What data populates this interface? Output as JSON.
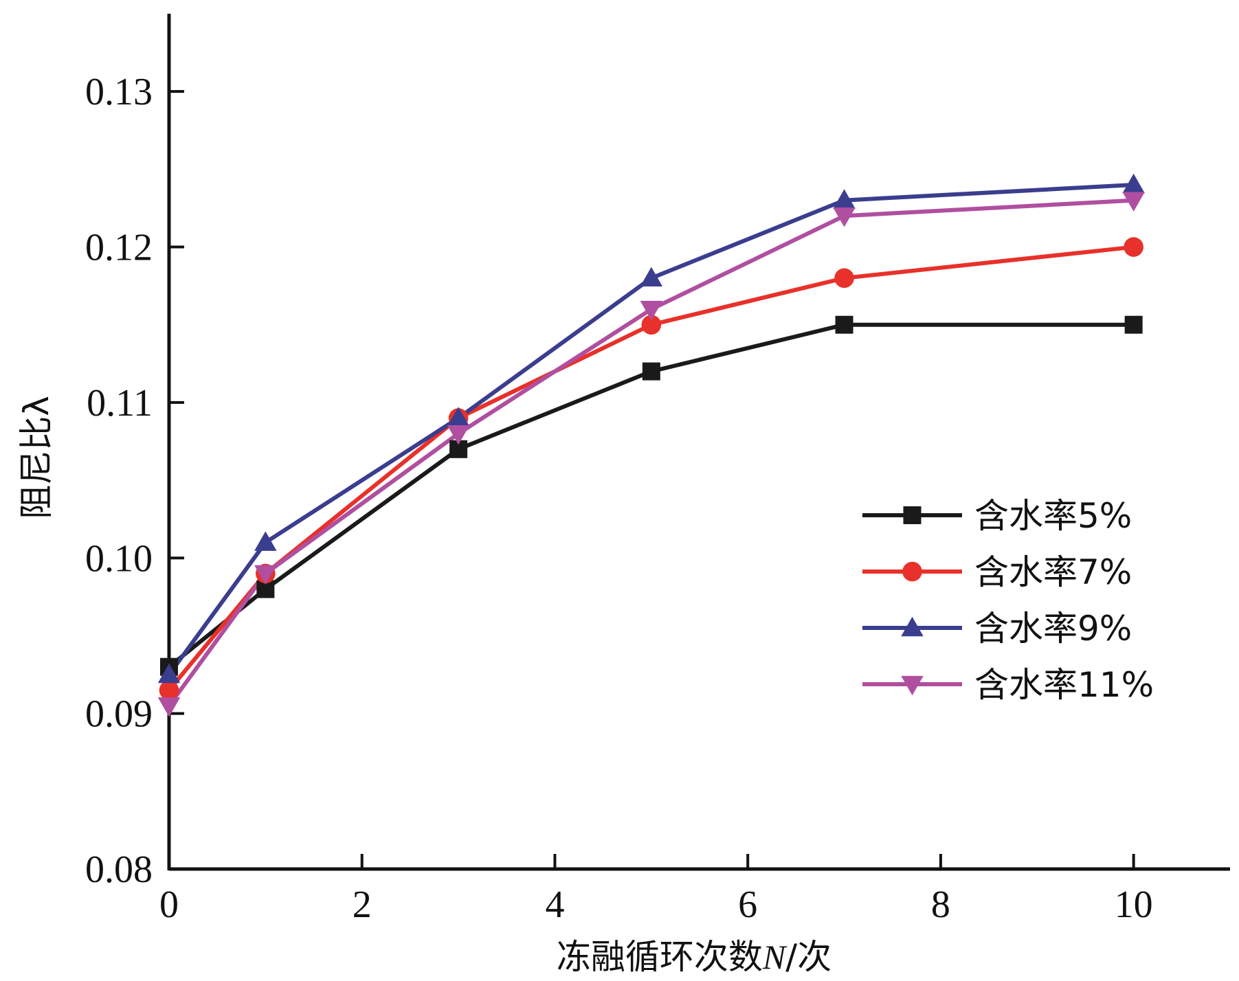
{
  "chart_data": {
    "type": "line",
    "title": "",
    "xlabel": "冻融循环次数N/次",
    "xlabel_parts": {
      "prefix": "冻融循环次数",
      "symbol": "N",
      "suffix": "/次"
    },
    "ylabel": "阻尼比λ",
    "xlim": [
      0,
      11
    ],
    "ylim": [
      0.08,
      0.135
    ],
    "xticks": [
      0,
      2,
      4,
      6,
      8,
      10
    ],
    "xtick_labels": [
      "0",
      "2",
      "4",
      "6",
      "8",
      "10"
    ],
    "yticks": [
      0.08,
      0.09,
      0.1,
      0.11,
      0.12,
      0.13
    ],
    "ytick_labels": [
      "0.08",
      "0.09",
      "0.10",
      "0.11",
      "0.12",
      "0.13"
    ],
    "grid": false,
    "legend_position": "middle-right",
    "x": [
      0,
      1,
      3,
      5,
      7,
      10
    ],
    "series": [
      {
        "name": "含水率5%",
        "color": "#1a1a1a",
        "marker": "square",
        "values": [
          0.093,
          0.098,
          0.107,
          0.112,
          0.115,
          0.115
        ]
      },
      {
        "name": "含水率7%",
        "color": "#e8312a",
        "marker": "circle",
        "values": [
          0.0915,
          0.099,
          0.109,
          0.115,
          0.118,
          0.12
        ]
      },
      {
        "name": "含水率9%",
        "color": "#3b3d8f",
        "marker": "triangle-up",
        "values": [
          0.0925,
          0.101,
          0.109,
          0.118,
          0.123,
          0.124
        ]
      },
      {
        "name": "含水率11%",
        "color": "#b04fa0",
        "marker": "triangle-down",
        "values": [
          0.0905,
          0.099,
          0.108,
          0.116,
          0.122,
          0.123
        ]
      }
    ]
  }
}
